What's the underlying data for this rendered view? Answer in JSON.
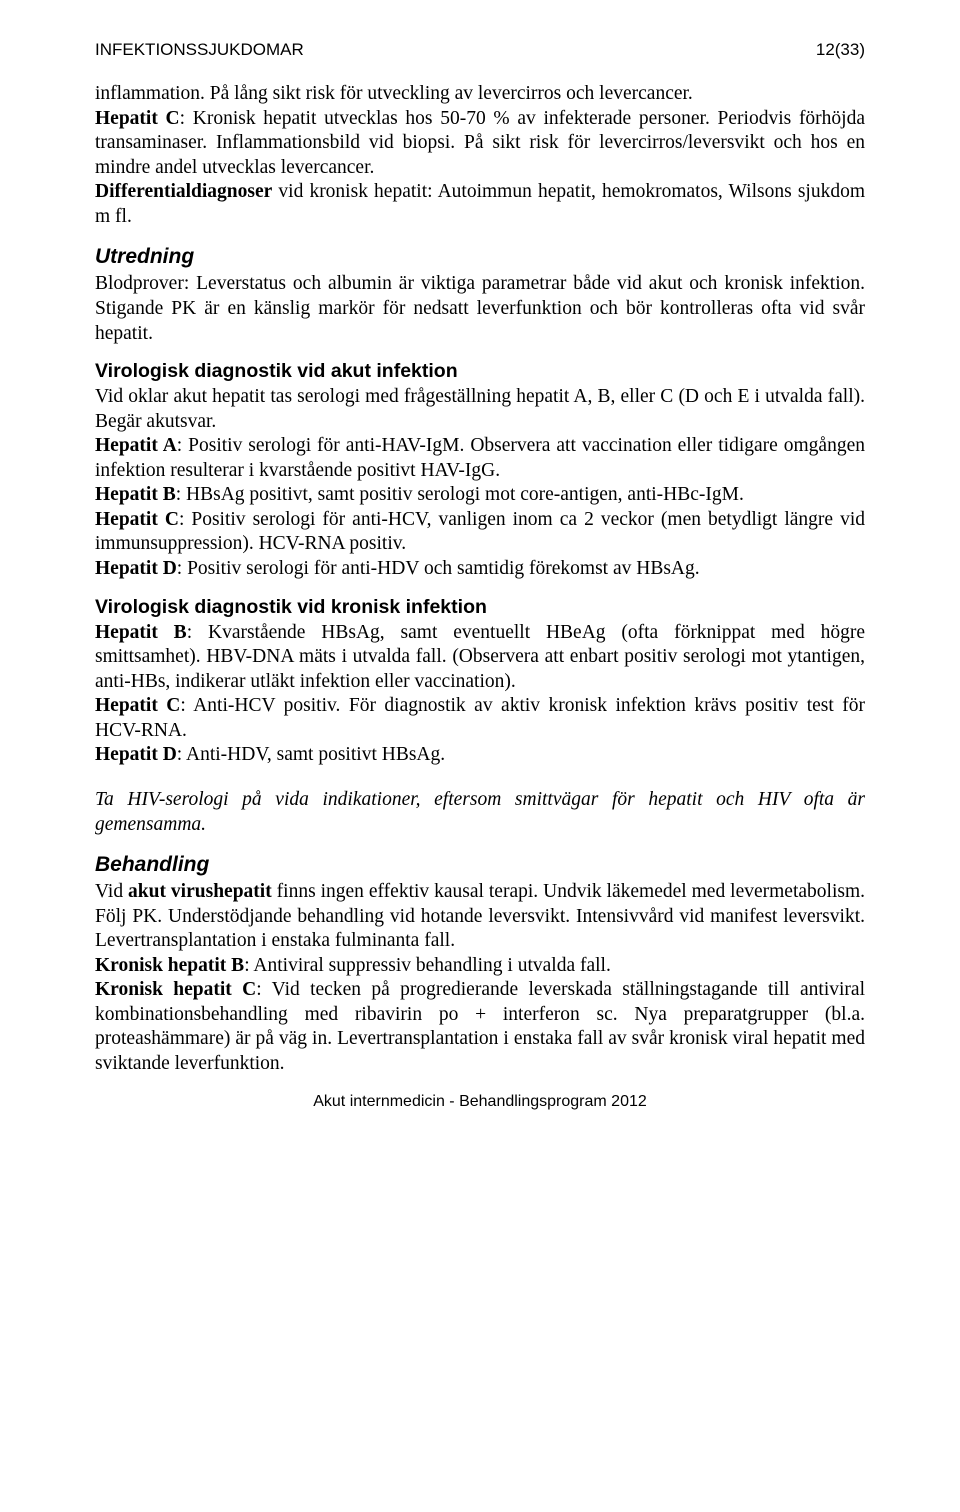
{
  "header": {
    "title": "INFEKTIONSSJUKDOMAR",
    "page": "12(33)"
  },
  "body": {
    "p1_a": "inflammation. På lång sikt risk för utveckling av levercirros och levercancer.",
    "p1_b_bold": "Hepatit C",
    "p1_b_rest": ": Kronisk hepatit utvecklas hos 50-70 % av infekterade personer. Periodvis förhöjda transaminaser. Inflammationsbild vid biopsi. På sikt risk för levercirros/leversvikt och hos en mindre andel utvecklas levercancer.",
    "p1_c_bold": "Differentialdiagnoser",
    "p1_c_rest": " vid kronisk hepatit: Autoimmun hepatit, hemokromatos, Wilsons sjukdom m fl.",
    "h_utredning": "Utredning",
    "p2": "Blodprover: Leverstatus och albumin är viktiga parametrar både vid akut och kronisk infektion. Stigande PK är en känslig markör för nedsatt leverfunktion och bör kontrolleras ofta vid svår hepatit.",
    "h_virolog_akut": "Virologisk diagnostik vid akut infektion",
    "p3_a": "Vid oklar akut hepatit tas serologi med frågeställning hepatit A, B, eller C (D och E i utvalda fall). Begär akutsvar.",
    "p3_b_bold": "Hepatit A",
    "p3_b_rest": ": Positiv serologi för anti-HAV-IgM. Observera att vaccination eller tidigare omgången infektion resulterar i kvarstående positivt HAV-IgG.",
    "p3_c_bold": "Hepatit B",
    "p3_c_rest": ": HBsAg positivt, samt positiv serologi mot core-antigen, anti-HBc-IgM.",
    "p3_d_bold": "Hepatit C",
    "p3_d_rest": ": Positiv serologi för anti-HCV, vanligen inom ca 2 veckor (men betydligt längre vid immunsuppression). HCV-RNA positiv.",
    "p3_e_bold": "Hepatit D",
    "p3_e_rest": ": Positiv serologi för anti-HDV och samtidig förekomst av HBsAg.",
    "h_virolog_kronisk": "Virologisk diagnostik vid kronisk infektion",
    "p4_a_bold": "Hepatit B",
    "p4_a_rest": ": Kvarstående HBsAg, samt eventuellt HBeAg (ofta förknippat med högre smittsamhet). HBV-DNA mäts i utvalda fall. (Observera att enbart positiv serologi mot ytantigen, anti-HBs, indikerar utläkt infektion eller vaccination).",
    "p4_b_bold": "Hepatit C",
    "p4_b_rest": ": Anti-HCV positiv. För diagnostik av aktiv kronisk infektion krävs positiv test för HCV-RNA.",
    "p4_c_bold": "Hepatit D",
    "p4_c_rest": ": Anti-HDV, samt positivt HBsAg.",
    "p5_italic": "Ta HIV-serologi på vida indikationer, eftersom smittvägar för hepatit och HIV ofta är gemensamma.",
    "h_behandling": "Behandling",
    "p6_a_pre": "Vid ",
    "p6_a_bold": "akut virushepatit",
    "p6_a_post": " finns ingen effektiv kausal terapi. Undvik läkemedel med levermetabolism. Följ PK. Understödjande behandling vid hotande leversvikt. Intensivvård vid manifest leversvikt. Levertransplantation i enstaka fulminanta fall.",
    "p6_b_bold": "Kronisk hepatit B",
    "p6_b_rest": ": Antiviral suppressiv behandling i utvalda fall.",
    "p6_c_bold": "Kronisk hepatit C",
    "p6_c_rest": ": Vid tecken på progredierande leverskada ställningstagande till antiviral kombinationsbehandling med ribavirin po + interferon sc. Nya preparatgrupper (bl.a. proteashämmare) är på väg in. Levertransplantation i enstaka fall av svår kronisk viral hepatit med sviktande leverfunktion."
  },
  "footer": {
    "text": "Akut internmedicin - Behandlingsprogram 2012"
  }
}
